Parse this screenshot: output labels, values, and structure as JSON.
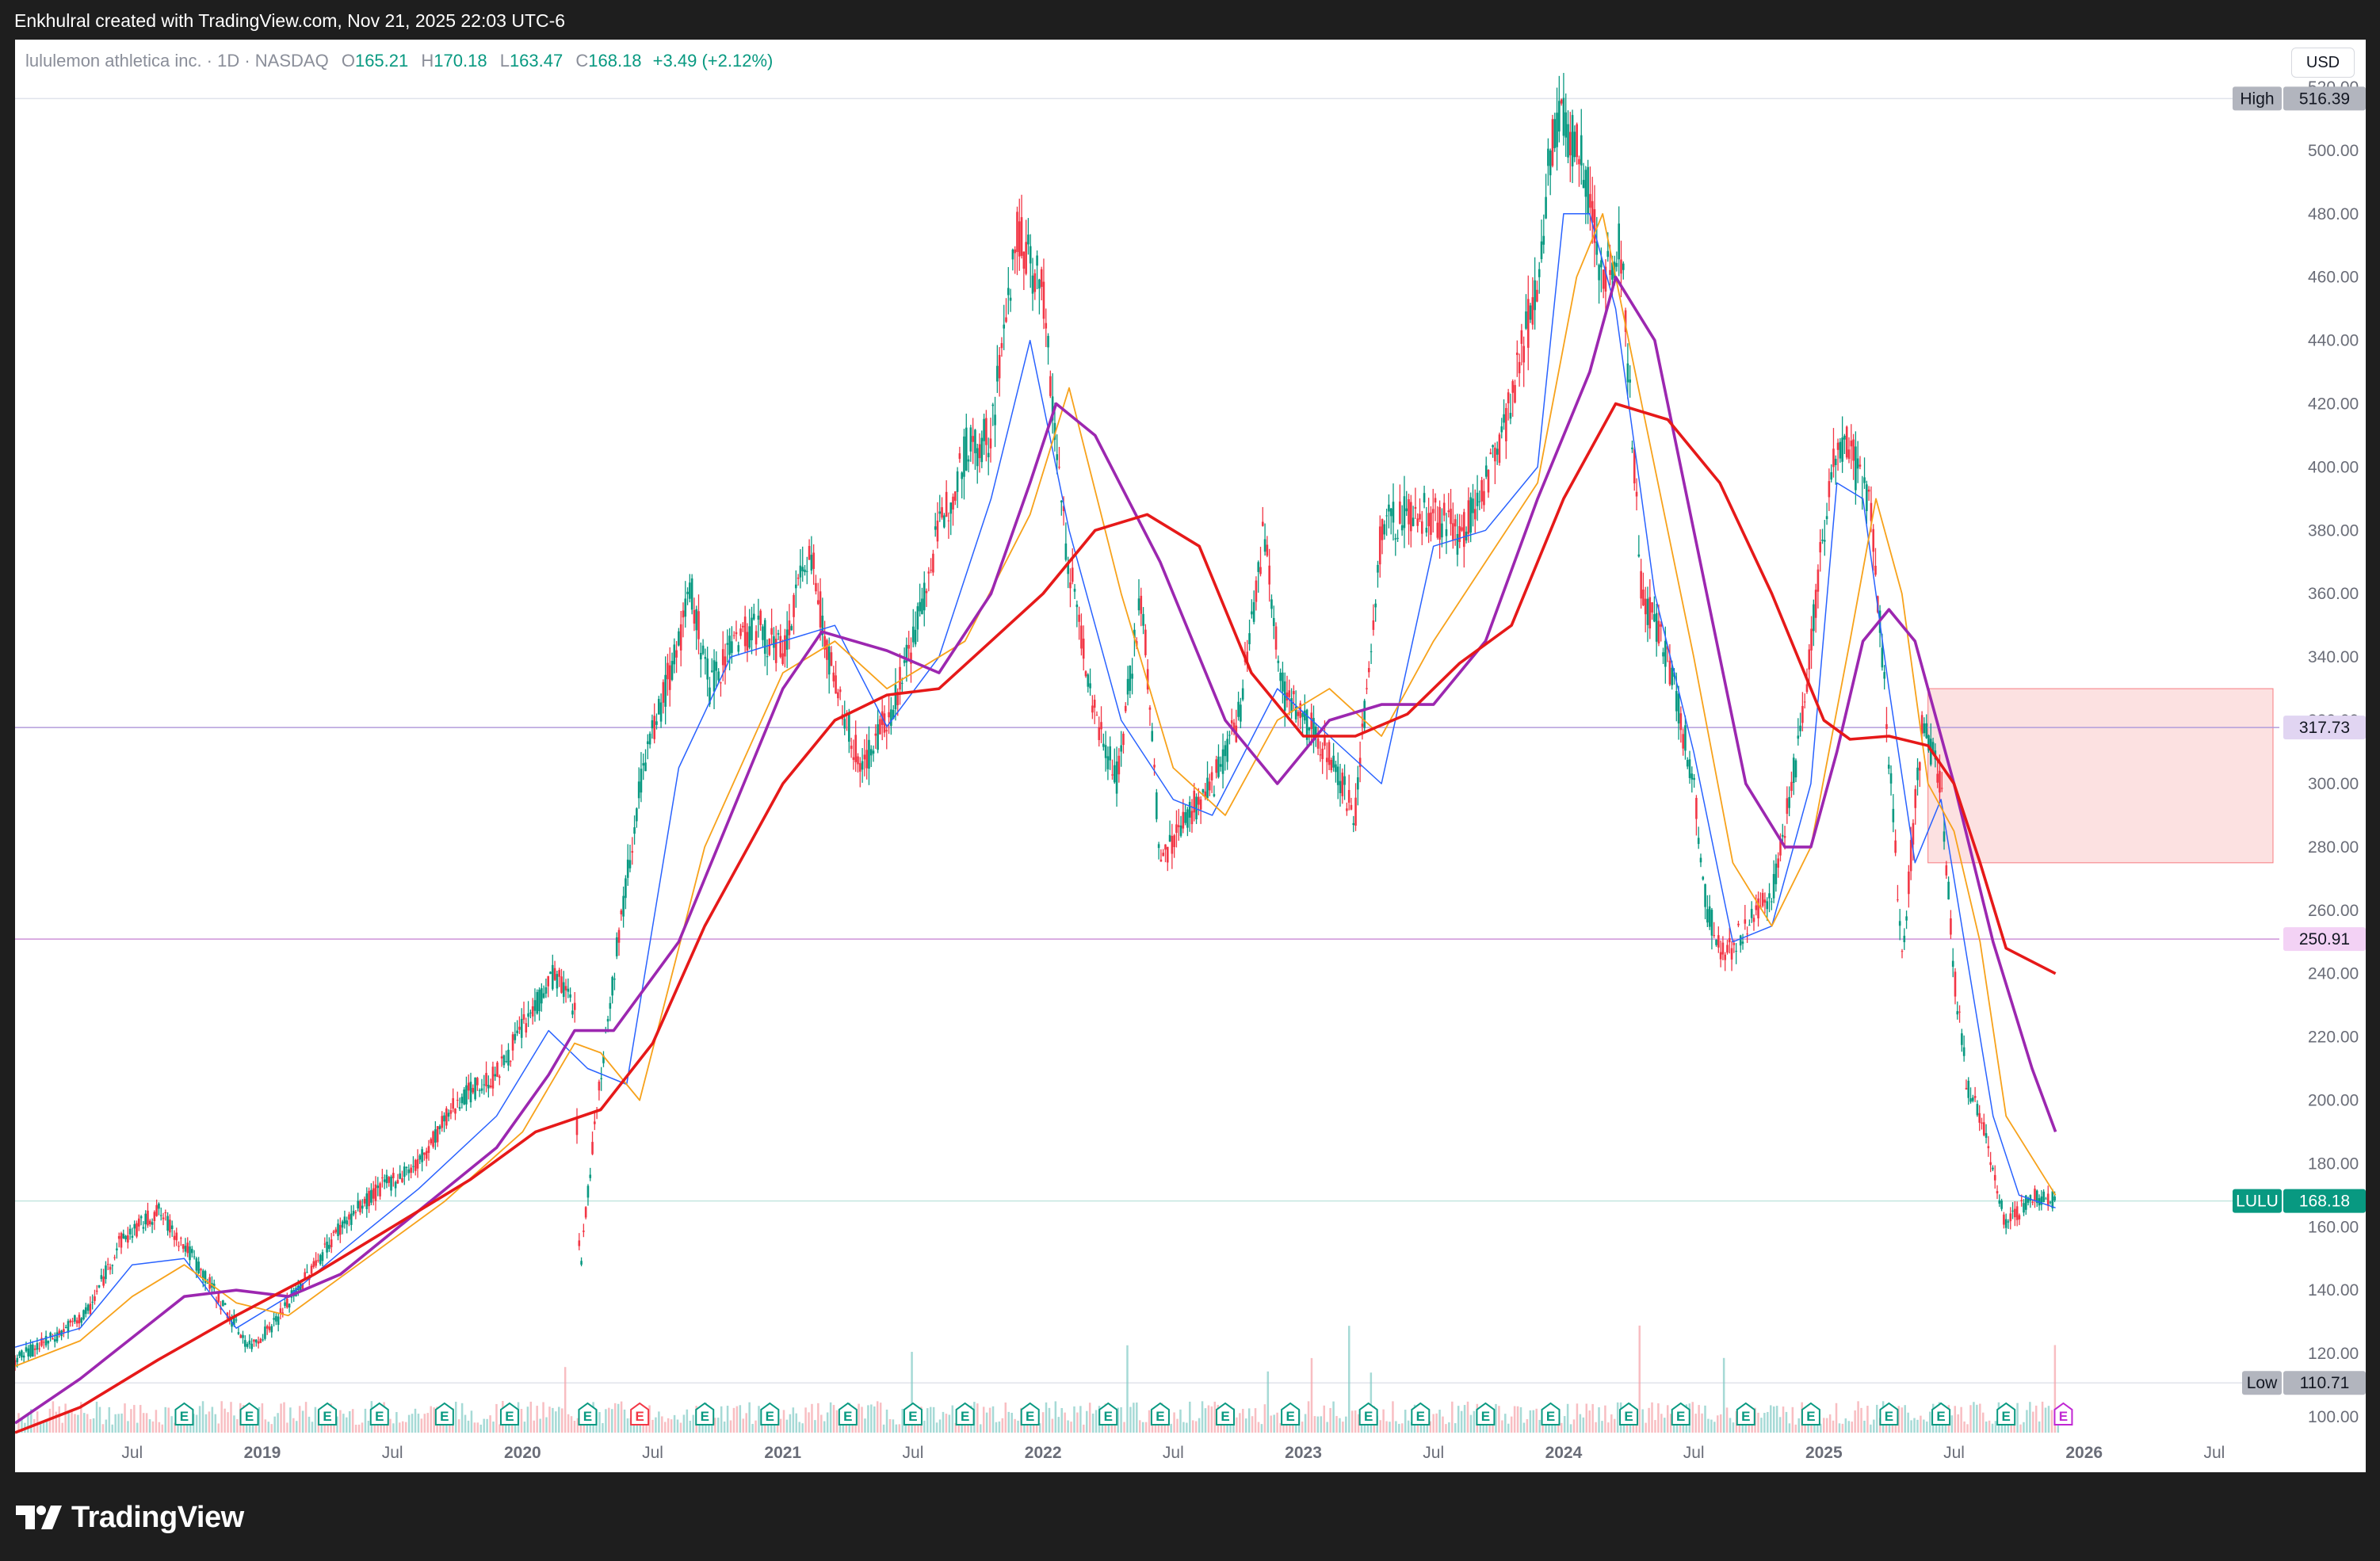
{
  "header": {
    "credit": "Enkhulral created with TradingView.com, Nov 21, 2025 22:03 UTC-6"
  },
  "legend": {
    "symbol": "lululemon athletica inc. · 1D · NASDAQ",
    "open_label": "O",
    "open": "165.21",
    "high_label": "H",
    "high": "170.18",
    "low_label": "L",
    "low": "163.47",
    "close_label": "C",
    "close": "168.18",
    "change": "+3.49 (+2.12%)"
  },
  "currency": "USD",
  "footer": {
    "brand": "TradingView"
  },
  "colors": {
    "up": "#089981",
    "down": "#f23645",
    "sma_fast": "#2962ff",
    "sma_mid": "#f7a21b",
    "sma_purple": "#9c27b0",
    "sma_red": "#e61919",
    "zone_fill": "#fcdcdc",
    "zone_line": "#f77c80",
    "purple_line": "#ce93d8",
    "grey_line": "#b2b5be"
  },
  "chart_data": {
    "type": "line",
    "symbol": "LULU",
    "ylim": [
      95,
      525
    ],
    "y_ticks": [
      100,
      120,
      140,
      160,
      180,
      200,
      220,
      240,
      260,
      280,
      300,
      320,
      340,
      360,
      380,
      400,
      420,
      440,
      460,
      480,
      500,
      520
    ],
    "x_ticks": [
      {
        "t": 2018.5,
        "label": "Jul"
      },
      {
        "t": 2019.0,
        "label": "2019"
      },
      {
        "t": 2019.5,
        "label": "Jul"
      },
      {
        "t": 2020.0,
        "label": "2020"
      },
      {
        "t": 2020.5,
        "label": "Jul"
      },
      {
        "t": 2021.0,
        "label": "2021"
      },
      {
        "t": 2021.5,
        "label": "Jul"
      },
      {
        "t": 2022.0,
        "label": "2022"
      },
      {
        "t": 2022.5,
        "label": "Jul"
      },
      {
        "t": 2023.0,
        "label": "2023"
      },
      {
        "t": 2023.5,
        "label": "Jul"
      },
      {
        "t": 2024.0,
        "label": "2024"
      },
      {
        "t": 2024.5,
        "label": "Jul"
      },
      {
        "t": 2025.0,
        "label": "2025"
      },
      {
        "t": 2025.5,
        "label": "Jul"
      },
      {
        "t": 2026.0,
        "label": "2026"
      },
      {
        "t": 2026.5,
        "label": "Jul"
      }
    ],
    "price": {
      "x": [
        2018.05,
        2018.2,
        2018.33,
        2018.45,
        2018.6,
        2018.72,
        2018.85,
        2018.95,
        2019.05,
        2019.2,
        2019.3,
        2019.45,
        2019.6,
        2019.75,
        2019.9,
        2020.05,
        2020.12,
        2020.2,
        2020.22,
        2020.28,
        2020.35,
        2020.45,
        2020.55,
        2020.65,
        2020.72,
        2020.8,
        2020.9,
        2021.0,
        2021.1,
        2021.2,
        2021.3,
        2021.4,
        2021.5,
        2021.6,
        2021.7,
        2021.8,
        2021.9,
        2022.0,
        2022.08,
        2022.18,
        2022.28,
        2022.38,
        2022.45,
        2022.55,
        2022.65,
        2022.75,
        2022.85,
        2022.92,
        2023.0,
        2023.1,
        2023.2,
        2023.3,
        2023.4,
        2023.5,
        2023.6,
        2023.7,
        2023.8,
        2023.9,
        2023.95,
        2024.0,
        2024.08,
        2024.15,
        2024.22,
        2024.3,
        2024.4,
        2024.5,
        2024.55,
        2024.62,
        2024.7,
        2024.8,
        2024.9,
        2025.0,
        2025.05,
        2025.1,
        2025.18,
        2025.23,
        2025.3,
        2025.38,
        2025.45,
        2025.5,
        2025.55,
        2025.62,
        2025.7,
        2025.8,
        2025.89
      ],
      "y": [
        118,
        125,
        133,
        155,
        165,
        152,
        135,
        122,
        130,
        148,
        160,
        172,
        180,
        200,
        208,
        230,
        240,
        230,
        145,
        195,
        240,
        300,
        330,
        360,
        330,
        345,
        350,
        340,
        375,
        330,
        305,
        320,
        345,
        380,
        405,
        410,
        475,
        455,
        380,
        330,
        300,
        360,
        275,
        290,
        300,
        320,
        380,
        330,
        320,
        310,
        290,
        380,
        385,
        385,
        378,
        395,
        420,
        460,
        500,
        510,
        495,
        460,
        470,
        360,
        340,
        300,
        260,
        245,
        255,
        265,
        310,
        380,
        410,
        405,
        385,
        335,
        245,
        320,
        300,
        240,
        205,
        190,
        160,
        170,
        168.18
      ]
    },
    "series": [
      {
        "name": "",
        "color": "blue",
        "x": [
          2018.05,
          2018.3,
          2018.5,
          2018.7,
          2018.9,
          2019.1,
          2019.3,
          2019.6,
          2019.9,
          2020.1,
          2020.25,
          2020.4,
          2020.6,
          2020.8,
          2021.0,
          2021.2,
          2021.4,
          2021.6,
          2021.8,
          2021.95,
          2022.1,
          2022.3,
          2022.5,
          2022.65,
          2022.9,
          2023.1,
          2023.3,
          2023.5,
          2023.7,
          2023.9,
          2024.0,
          2024.1,
          2024.2,
          2024.35,
          2024.5,
          2024.65,
          2024.8,
          2024.95,
          2025.05,
          2025.15,
          2025.25,
          2025.35,
          2025.45,
          2025.55,
          2025.65,
          2025.75,
          2025.89
        ],
        "y": [
          122,
          128,
          148,
          150,
          128,
          138,
          152,
          172,
          195,
          222,
          210,
          205,
          305,
          340,
          345,
          350,
          318,
          340,
          390,
          440,
          380,
          320,
          295,
          290,
          330,
          315,
          300,
          375,
          380,
          400,
          480,
          480,
          450,
          360,
          310,
          250,
          255,
          300,
          395,
          390,
          330,
          275,
          295,
          245,
          195,
          170,
          166
        ]
      },
      {
        "name": "",
        "color": "orange",
        "x": [
          2018.05,
          2018.3,
          2018.5,
          2018.7,
          2018.9,
          2019.1,
          2019.4,
          2019.7,
          2020.0,
          2020.2,
          2020.3,
          2020.45,
          2020.7,
          2021.0,
          2021.2,
          2021.4,
          2021.7,
          2021.95,
          2022.1,
          2022.3,
          2022.5,
          2022.7,
          2022.9,
          2023.1,
          2023.3,
          2023.5,
          2023.7,
          2023.9,
          2024.05,
          2024.15,
          2024.3,
          2024.5,
          2024.65,
          2024.8,
          2024.95,
          2025.1,
          2025.2,
          2025.3,
          2025.4,
          2025.5,
          2025.6,
          2025.7,
          2025.89
        ],
        "y": [
          116,
          124,
          138,
          148,
          136,
          132,
          150,
          168,
          190,
          218,
          215,
          200,
          280,
          335,
          345,
          330,
          345,
          385,
          425,
          360,
          305,
          290,
          320,
          330,
          315,
          345,
          370,
          395,
          460,
          480,
          420,
          340,
          275,
          255,
          280,
          345,
          390,
          360,
          300,
          285,
          250,
          195,
          170
        ]
      },
      {
        "name": "",
        "color": "purple",
        "x": [
          2018.05,
          2018.3,
          2018.5,
          2018.7,
          2018.9,
          2019.1,
          2019.3,
          2019.6,
          2019.9,
          2020.1,
          2020.2,
          2020.35,
          2020.6,
          2020.85,
          2021.0,
          2021.15,
          2021.4,
          2021.6,
          2021.8,
          2021.95,
          2022.05,
          2022.2,
          2022.45,
          2022.7,
          2022.9,
          2023.1,
          2023.3,
          2023.5,
          2023.7,
          2023.9,
          2024.1,
          2024.2,
          2024.35,
          2024.55,
          2024.7,
          2024.85,
          2024.95,
          2025.05,
          2025.15,
          2025.25,
          2025.35,
          2025.5,
          2025.65,
          2025.8,
          2025.89
        ],
        "y": [
          98,
          112,
          125,
          138,
          140,
          138,
          145,
          165,
          185,
          208,
          222,
          222,
          250,
          300,
          330,
          348,
          342,
          335,
          360,
          395,
          420,
          410,
          370,
          320,
          300,
          320,
          325,
          325,
          345,
          390,
          430,
          460,
          440,
          360,
          300,
          280,
          280,
          310,
          345,
          355,
          345,
          300,
          250,
          210,
          190
        ]
      },
      {
        "name": "",
        "color": "red",
        "x": [
          2018.05,
          2018.3,
          2018.6,
          2018.9,
          2019.2,
          2019.5,
          2019.8,
          2020.05,
          2020.3,
          2020.5,
          2020.7,
          2021.0,
          2021.2,
          2021.4,
          2021.6,
          2021.8,
          2022.0,
          2022.2,
          2022.4,
          2022.6,
          2022.8,
          2023.0,
          2023.2,
          2023.4,
          2023.6,
          2023.8,
          2024.0,
          2024.2,
          2024.4,
          2024.6,
          2024.8,
          2025.0,
          2025.1,
          2025.25,
          2025.4,
          2025.5,
          2025.6,
          2025.7,
          2025.89
        ],
        "y": [
          95,
          103,
          118,
          132,
          145,
          160,
          175,
          190,
          197,
          218,
          255,
          300,
          320,
          328,
          330,
          345,
          360,
          380,
          385,
          375,
          335,
          315,
          315,
          322,
          338,
          350,
          390,
          420,
          415,
          395,
          360,
          320,
          314,
          315,
          312,
          300,
          275,
          248,
          240
        ]
      }
    ],
    "levels": [
      {
        "value": 516.39,
        "tag": "High",
        "label": "516.39",
        "color": "#b2b5be"
      },
      {
        "value": 317.73,
        "label": "317.73",
        "color": "#9c27b0"
      },
      {
        "value": 250.91,
        "label": "250.91",
        "color": "#ce93d8"
      },
      {
        "value": 168.18,
        "tag": "LULU",
        "label": "168.18",
        "color": "#089981"
      },
      {
        "value": 110.71,
        "tag": "Low",
        "label": "110.71",
        "color": "#b2b5be"
      }
    ],
    "zone": {
      "t_start": 2025.4,
      "t_end": 2026.45,
      "top": 330,
      "bottom": 275
    },
    "earnings": [
      2018.7,
      2018.95,
      2019.25,
      2019.45,
      2019.7,
      2019.95,
      2020.25,
      2020.45,
      2020.7,
      2020.95,
      2021.25,
      2021.5,
      2021.7,
      2021.95,
      2022.25,
      2022.45,
      2022.7,
      2022.95,
      2023.25,
      2023.45,
      2023.7,
      2023.95,
      2024.25,
      2024.45,
      2024.7,
      2024.95,
      2025.25,
      2025.45,
      2025.7
    ],
    "earnings_negative": [
      2020.45
    ],
    "earnings_upcoming": [
      2025.92
    ],
    "earnings_label": "E"
  }
}
